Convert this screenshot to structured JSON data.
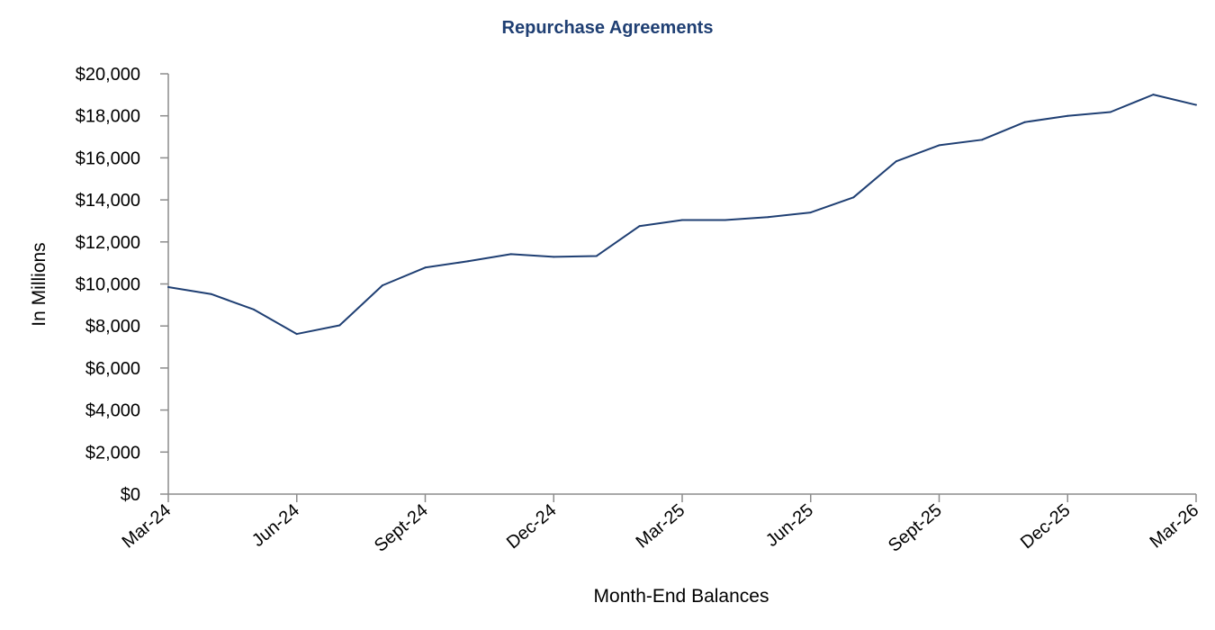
{
  "chart_data": {
    "type": "line",
    "title": "Repurchase Agreements",
    "xlabel": "Month-End Balances",
    "ylabel": "In Millions",
    "ylim": [
      0,
      20000
    ],
    "y_ticks": [
      0,
      2000,
      4000,
      6000,
      8000,
      10000,
      12000,
      14000,
      16000,
      18000,
      20000
    ],
    "y_tick_labels": [
      "$0",
      "$2,000",
      "$4,000",
      "$6,000",
      "$8,000",
      "$10,000",
      "$12,000",
      "$14,000",
      "$16,000",
      "$18,000",
      "$20,000"
    ],
    "x": [
      "Mar-24",
      "Apr-24",
      "May-24",
      "Jun-24",
      "Jul-24",
      "Aug-24",
      "Sept-24",
      "Oct-24",
      "Nov-24",
      "Dec-24",
      "Jan-25",
      "Feb-25",
      "Mar-25",
      "Apr-25",
      "May-25",
      "Jun-25",
      "Jul-25",
      "Aug-25",
      "Sept-25",
      "Oct-25",
      "Nov-25",
      "Dec-25",
      "Jan-26",
      "Feb-26",
      "Mar-26"
    ],
    "x_tick_labels": [
      "Mar-24",
      "Jun-24",
      "Sept-24",
      "Dec-24",
      "Mar-25",
      "Jun-25",
      "Sept-25",
      "Dec-25",
      "Mar-26"
    ],
    "grid": false,
    "legend": "none",
    "series": [
      {
        "color": "#1f3f73",
        "values": [
          9850,
          9520,
          8780,
          7620,
          8030,
          9930,
          10780,
          11080,
          11420,
          11290,
          11330,
          12750,
          13040,
          13040,
          13180,
          13400,
          14120,
          15840,
          16600,
          16860,
          17700,
          18000,
          18180,
          19010,
          18520
        ]
      }
    ]
  }
}
